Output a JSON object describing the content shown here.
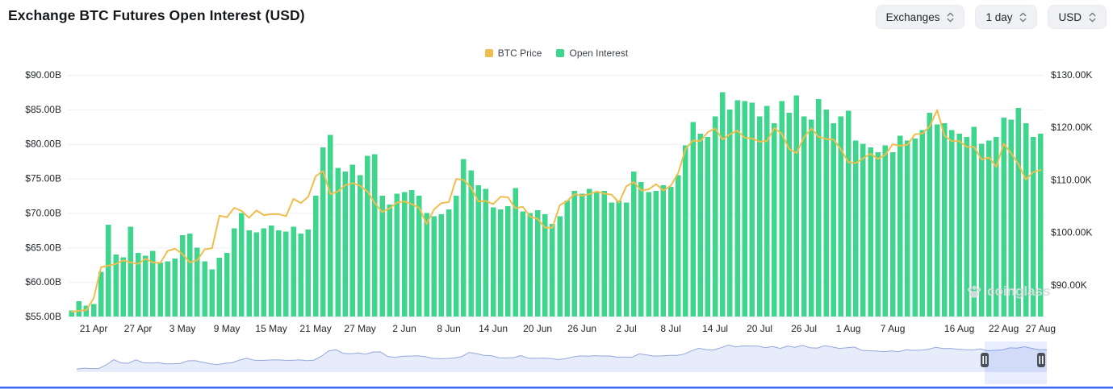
{
  "header": {
    "title": "Exchange BTC Futures Open Interest (USD)",
    "controls": [
      {
        "label": "Exchanges"
      },
      {
        "label": "1 day"
      },
      {
        "label": "USD"
      }
    ]
  },
  "legend": [
    {
      "label": "BTC Price",
      "color": "#efbe4e"
    },
    {
      "label": "Open Interest",
      "color": "#3dd68c"
    }
  ],
  "watermark": {
    "label": "coinglass"
  },
  "colors": {
    "bar_green": "#3dd68c",
    "line_yellow": "#efbe4e",
    "grid": "#edeff2",
    "axis_text": "#24272d",
    "navigator_fill": "#e6ecf9",
    "navigator_line": "#93a8dd",
    "selection_fill": "rgba(77,119,255,0.13)",
    "handle_fill": "#4a4f5c",
    "accent_blue": "#3b6bf5"
  },
  "chart_data": {
    "type": "bar",
    "title": "Exchange BTC Futures Open Interest (USD)",
    "legend_position": "top",
    "grid": true,
    "x": [
      "18 Apr",
      "19 Apr",
      "20 Apr",
      "21 Apr",
      "22 Apr",
      "23 Apr",
      "24 Apr",
      "25 Apr",
      "26 Apr",
      "27 Apr",
      "28 Apr",
      "29 Apr",
      "30 Apr",
      "1 May",
      "2 May",
      "3 May",
      "4 May",
      "5 May",
      "6 May",
      "7 May",
      "8 May",
      "9 May",
      "10 May",
      "11 May",
      "12 May",
      "13 May",
      "14 May",
      "15 May",
      "16 May",
      "17 May",
      "18 May",
      "19 May",
      "20 May",
      "21 May",
      "22 May",
      "23 May",
      "24 May",
      "25 May",
      "26 May",
      "27 May",
      "28 May",
      "29 May",
      "30 May",
      "31 May",
      "1 Jun",
      "2 Jun",
      "3 Jun",
      "4 Jun",
      "5 Jun",
      "6 Jun",
      "7 Jun",
      "8 Jun",
      "9 Jun",
      "10 Jun",
      "11 Jun",
      "12 Jun",
      "13 Jun",
      "14 Jun",
      "15 Jun",
      "16 Jun",
      "17 Jun",
      "18 Jun",
      "19 Jun",
      "20 Jun",
      "21 Jun",
      "22 Jun",
      "23 Jun",
      "24 Jun",
      "25 Jun",
      "26 Jun",
      "27 Jun",
      "28 Jun",
      "29 Jun",
      "30 Jun",
      "1 Jul",
      "2 Jul",
      "3 Jul",
      "4 Jul",
      "5 Jul",
      "6 Jul",
      "7 Jul",
      "8 Jul",
      "9 Jul",
      "10 Jul",
      "11 Jul",
      "12 Jul",
      "13 Jul",
      "14 Jul",
      "15 Jul",
      "16 Jul",
      "17 Jul",
      "18 Jul",
      "19 Jul",
      "20 Jul",
      "21 Jul",
      "22 Jul",
      "23 Jul",
      "24 Jul",
      "25 Jul",
      "26 Jul",
      "27 Jul",
      "28 Jul",
      "29 Jul",
      "30 Jul",
      "31 Jul",
      "1 Aug",
      "2 Aug",
      "3 Aug",
      "4 Aug",
      "5 Aug",
      "6 Aug",
      "7 Aug",
      "8 Aug",
      "9 Aug",
      "10 Aug",
      "11 Aug",
      "12 Aug",
      "13 Aug",
      "14 Aug",
      "15 Aug",
      "16 Aug",
      "17 Aug",
      "18 Aug",
      "19 Aug",
      "20 Aug",
      "21 Aug",
      "22 Aug",
      "23 Aug",
      "24 Aug",
      "25 Aug",
      "26 Aug",
      "27 Aug"
    ],
    "series": [
      {
        "name": "Open Interest",
        "type": "bar",
        "axis": "left",
        "unit": "USD billions",
        "color": "#3dd68c",
        "values": [
          55.9,
          57.2,
          56.6,
          56.8,
          61.5,
          68.3,
          64.0,
          63.6,
          68.0,
          64.2,
          63.8,
          64.5,
          62.8,
          63.0,
          63.4,
          66.8,
          67.0,
          65.0,
          63.0,
          61.8,
          63.5,
          64.2,
          67.8,
          70.0,
          67.5,
          67.2,
          67.8,
          68.2,
          67.5,
          67.3,
          68.0,
          67.0,
          67.6,
          72.5,
          79.5,
          81.3,
          76.5,
          76.0,
          77.0,
          75.5,
          78.3,
          78.5,
          72.5,
          71.2,
          72.8,
          73.0,
          73.3,
          72.5,
          70.0,
          69.5,
          69.8,
          70.5,
          72.5,
          77.8,
          76.2,
          74.0,
          73.5,
          70.8,
          70.5,
          71.0,
          73.6,
          70.2,
          70.0,
          70.4,
          69.8,
          68.4,
          69.5,
          71.8,
          73.2,
          72.8,
          73.5,
          73.0,
          73.2,
          71.5,
          71.8,
          71.5,
          76.0,
          74.5,
          73.0,
          73.2,
          74.0,
          73.8,
          75.5,
          79.8,
          83.2,
          81.5,
          81.0,
          84.0,
          87.5,
          85.0,
          86.3,
          86.2,
          86.0,
          84.0,
          85.5,
          83.0,
          86.2,
          84.5,
          87.0,
          84.0,
          83.5,
          86.5,
          85.0,
          83.0,
          84.0,
          84.8,
          80.5,
          80.0,
          79.5,
          78.8,
          79.8,
          78.8,
          81.2,
          80.5,
          80.8,
          82.0,
          84.5,
          82.8,
          83.0,
          82.0,
          81.5,
          81.0,
          82.5,
          80.0,
          80.5,
          81.0,
          83.8,
          83.5,
          85.2,
          83.0,
          81.0,
          81.5
        ]
      },
      {
        "name": "BTC Price",
        "type": "line",
        "axis": "right",
        "unit": "USD thousands",
        "color": "#efbe4e",
        "values": [
          84.9,
          85.1,
          85.2,
          87.5,
          93.4,
          93.7,
          94.0,
          94.7,
          94.3,
          94.0,
          95.0,
          94.3,
          94.2,
          96.5,
          96.9,
          95.9,
          94.3,
          94.7,
          96.8,
          97.0,
          103.2,
          102.9,
          104.7,
          104.1,
          102.8,
          104.2,
          103.3,
          103.5,
          103.5,
          103.1,
          106.4,
          105.6,
          106.8,
          110.7,
          111.7,
          107.3,
          107.8,
          109.0,
          109.4,
          108.9,
          107.8,
          105.6,
          103.9,
          104.6,
          105.7,
          105.9,
          105.4,
          104.7,
          101.6,
          104.4,
          105.6,
          105.8,
          110.2,
          110.0,
          108.6,
          105.9,
          106.0,
          105.4,
          106.8,
          106.7,
          104.6,
          104.9,
          103.0,
          102.6,
          100.9,
          100.9,
          105.2,
          106.0,
          107.3,
          107.0,
          107.3,
          107.8,
          107.4,
          107.2,
          105.7,
          108.8,
          109.6,
          108.0,
          108.2,
          109.2,
          108.0,
          108.9,
          111.3,
          115.9,
          117.5,
          117.4,
          119.1,
          119.8,
          117.7,
          118.7,
          119.4,
          118.0,
          117.9,
          117.3,
          117.4,
          119.9,
          118.8,
          115.9,
          115.1,
          118.1,
          119.8,
          118.2,
          117.8,
          117.7,
          115.8,
          113.4,
          113.2,
          114.1,
          115.0,
          114.0,
          114.8,
          116.8,
          116.5,
          116.7,
          118.7,
          118.8,
          120.2,
          123.3,
          118.4,
          117.4,
          117.4,
          116.3,
          116.3,
          113.9,
          114.3,
          112.5,
          116.9,
          115.1,
          113.0,
          110.1,
          111.5,
          111.9
        ]
      }
    ],
    "left_axis": {
      "min": 55,
      "max": 90,
      "tick_values": [
        55,
        60,
        65,
        70,
        75,
        80,
        85,
        90
      ],
      "tick_labels": [
        "$55.00B",
        "$60.00B",
        "$65.00B",
        "$70.00B",
        "$75.00B",
        "$80.00B",
        "$85.00B",
        "$90.00B"
      ]
    },
    "right_axis": {
      "min": 84,
      "max": 130,
      "tick_values": [
        90,
        100,
        110,
        120,
        130
      ],
      "tick_labels": [
        "$90.00K",
        "$100.00K",
        "$110.00K",
        "$120.00K",
        "$130.00K"
      ]
    },
    "x_tick_labels": [
      "21 Apr",
      "27 Apr",
      "3 May",
      "9 May",
      "15 May",
      "21 May",
      "27 May",
      "2 Jun",
      "8 Jun",
      "14 Jun",
      "20 Jun",
      "26 Jun",
      "2 Jul",
      "8 Jul",
      "14 Jul",
      "20 Jul",
      "26 Jul",
      "1 Aug",
      "7 Aug",
      "16 Aug",
      "22 Aug",
      "27 Aug"
    ]
  }
}
